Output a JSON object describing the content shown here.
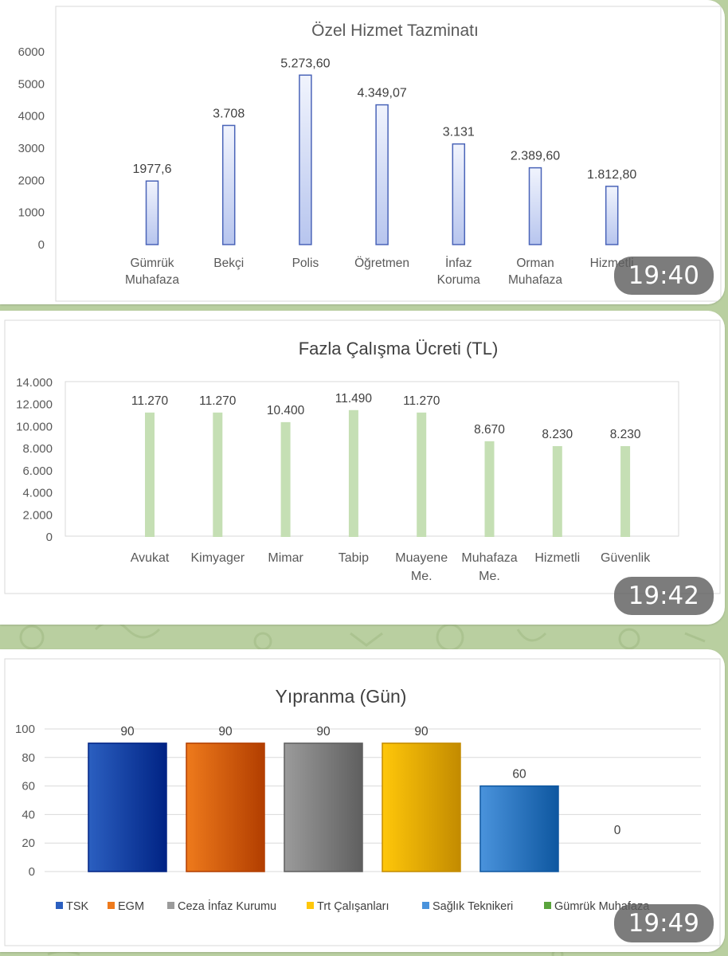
{
  "messages": [
    {
      "time": "19:40",
      "chart_data": {
        "type": "bar",
        "title": "Özel Hizmet Tazminatı",
        "categories": [
          [
            "Gümrük",
            "Muhafaza"
          ],
          [
            "Bekçi"
          ],
          [
            "Polis"
          ],
          [
            "Öğretmen"
          ],
          [
            "İnfaz",
            "Koruma"
          ],
          [
            "Orman",
            "Muhafaza"
          ],
          [
            "Hizmetli"
          ]
        ],
        "values": [
          1977.6,
          3708,
          5273.6,
          4349.07,
          3131,
          2389.6,
          1812.8
        ],
        "data_labels": [
          "1977,6",
          "3.708",
          "5.273,60",
          "4.349,07",
          "3.131",
          "2.389,60",
          "1.812,80"
        ],
        "yticks": [
          "0",
          "1000",
          "2000",
          "3000",
          "4000",
          "5000",
          "6000"
        ],
        "ylim": [
          0,
          6000
        ],
        "grid": false
      }
    },
    {
      "time": "19:42",
      "chart_data": {
        "type": "bar",
        "title": "Fazla Çalışma Ücreti (TL)",
        "categories": [
          [
            "Avukat"
          ],
          [
            "Kimyager"
          ],
          [
            "Mimar"
          ],
          [
            "Tabip"
          ],
          [
            "Muayene",
            "Me."
          ],
          [
            "Muhafaza",
            "Me."
          ],
          [
            "Hizmetli"
          ],
          [
            "Güvenlik"
          ]
        ],
        "values": [
          11270,
          11270,
          10400,
          11490,
          11270,
          8670,
          8230,
          8230
        ],
        "data_labels": [
          "11.270",
          "11.270",
          "10.400",
          "11.490",
          "11.270",
          "8.670",
          "8.230",
          "8.230"
        ],
        "yticks": [
          "0",
          "2.000",
          "4.000",
          "6.000",
          "8.000",
          "10.000",
          "12.000",
          "14.000"
        ],
        "ylim": [
          0,
          14000
        ],
        "grid": false,
        "color": "#c5dfb4"
      }
    },
    {
      "time": "19:49",
      "chart_data": {
        "type": "bar",
        "title": "Yıpranma (Gün)",
        "categories": [
          "TSK",
          "EGM",
          "Ceza İnfaz Kurumu",
          "Trt Çalışanları",
          "Sağlık Teknikeri",
          "Gümrük Muhafaza"
        ],
        "values": [
          90,
          90,
          90,
          90,
          60,
          0
        ],
        "data_labels": [
          "90",
          "90",
          "90",
          "90",
          "60",
          "0"
        ],
        "yticks": [
          "0",
          "20",
          "40",
          "60",
          "80",
          "100"
        ],
        "ylim": [
          0,
          100
        ],
        "grid": true,
        "legend_position": "bottom",
        "colors": [
          "#2b5fc0",
          "#ee7a1c",
          "#9b9b9b",
          "#ffc70a",
          "#4a93dc",
          "#5aa43c"
        ]
      }
    }
  ]
}
